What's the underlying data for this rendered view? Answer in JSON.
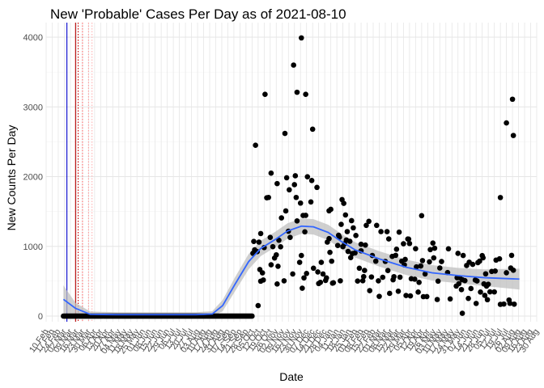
{
  "chart_data": {
    "type": "scatter",
    "title": "New 'Probable' Cases Per Day as of 2021-08-10",
    "xlabel": "Date",
    "ylabel": "New Counts Per Day",
    "x_axis_type": "date",
    "xlim": [
      "2020-02-10",
      "2021-08-30"
    ],
    "ylim": [
      0,
      4000
    ],
    "y_ticks": [
      0,
      1000,
      2000,
      3000,
      4000
    ],
    "x_tick_labels": [
      "10 Feb",
      "17 Feb",
      "24 Feb",
      "02 Mar",
      "09 Mar",
      "16 Mar",
      "23 Mar",
      "30 Mar",
      "06 Apr",
      "13 Apr",
      "20 Apr",
      "27 Apr",
      "04 May",
      "11 May",
      "18 May",
      "25 May",
      "01 Jun",
      "08 Jun",
      "15 Jun",
      "22 Jun",
      "29 Jun",
      "06 Jul",
      "13 Jul",
      "20 Jul",
      "27 Jul",
      "03 Aug",
      "10 Aug",
      "17 Aug",
      "24 Aug",
      "31 Aug",
      "07 Sep",
      "14 Sep",
      "21 Sep",
      "28 Sep",
      "05 Oct",
      "12 Oct",
      "19 Oct",
      "26 Oct",
      "02 Nov",
      "09 Nov",
      "16 Nov",
      "23 Nov",
      "30 Nov",
      "07 Dec",
      "14 Dec",
      "21 Dec",
      "28 Dec",
      "04 Jan",
      "11 Jan",
      "18 Jan",
      "25 Jan",
      "01 Feb",
      "08 Feb",
      "15 Feb",
      "22 Feb",
      "01 Mar",
      "08 Mar",
      "15 Mar",
      "22 Mar",
      "29 Mar",
      "05 Apr",
      "12 Apr",
      "19 Apr",
      "26 Apr",
      "03 May",
      "10 May",
      "17 May",
      "24 May",
      "31 May",
      "07 Jun",
      "14 Jun",
      "21 Jun",
      "28 Jun",
      "05 Jul",
      "12 Jul",
      "19 Jul",
      "26 Jul",
      "02 Aug",
      "09 Aug",
      "16 Aug",
      "23 Aug",
      "30 Aug"
    ],
    "grid": true,
    "legend": "none",
    "reference_lines": [
      {
        "date": "2020-03-05",
        "color": "#0000cc",
        "style": "solid"
      },
      {
        "date": "2020-03-15",
        "color": "#b30000",
        "style": "solid"
      },
      {
        "date": "2020-03-18",
        "color": "#cc0000",
        "style": "dotted"
      },
      {
        "date": "2020-03-23",
        "color": "#ff6666",
        "style": "dotted"
      },
      {
        "date": "2020-03-30",
        "color": "#ff9999",
        "style": "dotted"
      },
      {
        "date": "2020-04-03",
        "color": "#ffb3b3",
        "style": "dotted"
      }
    ],
    "point_color": "#000000",
    "series": [
      {
        "values_by_phase": [
          {
            "from": "2020-03-01",
            "to": "2020-10-05",
            "value": 0
          },
          {
            "date": "2020-10-06",
            "value": 900
          },
          {
            "date": "2020-10-07",
            "value": 1070
          },
          {
            "date": "2020-10-09",
            "value": 2450
          },
          {
            "date": "2020-10-12",
            "value": 150
          },
          {
            "date": "2020-10-15",
            "value": 500
          },
          {
            "date": "2020-10-20",
            "value": 3180
          },
          {
            "date": "2020-10-27",
            "value": 2050
          },
          {
            "date": "2020-11-03",
            "value": 1900
          },
          {
            "date": "2020-11-12",
            "value": 2620
          },
          {
            "date": "2020-11-22",
            "value": 3600
          },
          {
            "date": "2020-11-26",
            "value": 3210
          },
          {
            "date": "2020-12-01",
            "value": 3990
          },
          {
            "date": "2020-12-06",
            "value": 3180
          },
          {
            "date": "2020-12-14",
            "value": 2680
          },
          {
            "date": "2021-01-02",
            "value": 1510
          },
          {
            "date": "2021-02-08",
            "value": 1030
          },
          {
            "date": "2021-04-19",
            "value": 1440
          },
          {
            "date": "2021-06-05",
            "value": 40
          },
          {
            "date": "2021-07-19",
            "value": 1700
          },
          {
            "date": "2021-07-26",
            "value": 2770
          },
          {
            "date": "2021-08-02",
            "value": 3110
          },
          {
            "date": "2021-08-03",
            "value": 2590
          }
        ]
      }
    ],
    "smooth": {
      "type": "loess",
      "color": "#3366ff",
      "band_color": "#bfbfbf",
      "x": [
        "2020-03-01",
        "2020-03-15",
        "2020-04-01",
        "2020-05-01",
        "2020-06-01",
        "2020-07-01",
        "2020-08-01",
        "2020-08-20",
        "2020-09-01",
        "2020-09-15",
        "2020-10-01",
        "2020-10-15",
        "2020-11-01",
        "2020-11-15",
        "2020-12-01",
        "2020-12-15",
        "2021-01-01",
        "2021-01-15",
        "2021-02-01",
        "2021-03-01",
        "2021-04-01",
        "2021-05-01",
        "2021-06-01",
        "2021-07-01",
        "2021-08-10"
      ],
      "y": [
        240,
        110,
        25,
        20,
        20,
        20,
        20,
        30,
        150,
        450,
        780,
        970,
        1100,
        1220,
        1290,
        1280,
        1200,
        1080,
        950,
        820,
        700,
        620,
        580,
        550,
        530
      ],
      "band_halfwidth": [
        200,
        80,
        40,
        35,
        35,
        35,
        35,
        40,
        80,
        100,
        110,
        110,
        110,
        110,
        110,
        110,
        110,
        110,
        110,
        110,
        110,
        110,
        110,
        120,
        150
      ]
    }
  }
}
